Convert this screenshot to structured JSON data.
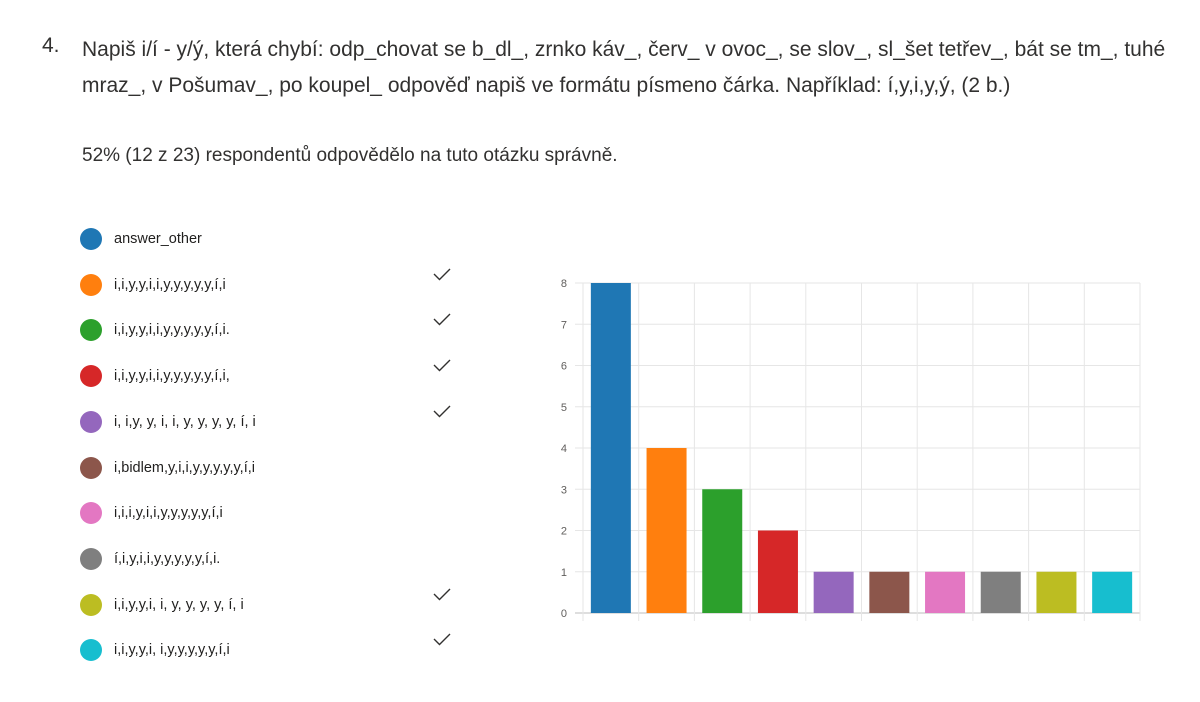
{
  "question": {
    "number": "4.",
    "text": "Napiš i/í - y/ý, která chybí: odp_chovat se b_dl_, zrnko káv_, červ_ v ovoc_, se slov_, sl_šet tetřev_, bát se tm_, tuhé mraz_, v Pošumav_, po koupel_ odpověď napiš ve formátu písmeno čárka. Například: í,y,i,y,ý, (2 b.)",
    "stat": "52% (12 z 23) respondentů odpovědělo na tuto otázku správně."
  },
  "legend": [
    {
      "label": "answer_other",
      "color": "#1f77b4",
      "correct": false,
      "check_icon": "checkmark-icon"
    },
    {
      "label": "i,i,y,y,i,i,y,y,y,y,y,í,i",
      "color": "#ff7f0e",
      "correct": true,
      "check_icon": "checkmark-icon"
    },
    {
      "label": "i,i,y,y,i,i,y,y,y,y,y,í,i.",
      "color": "#2ca02c",
      "correct": true,
      "check_icon": "checkmark-icon"
    },
    {
      "label": "i,i,y,y,i,i,y,y,y,y,y,í,i,",
      "color": "#d62728",
      "correct": true,
      "check_icon": "checkmark-icon"
    },
    {
      "label": "i, i,y, y, i, i, y, y, y, y, í, i",
      "color": "#9467bd",
      "correct": true,
      "check_icon": "checkmark-icon"
    },
    {
      "label": "i,bidlem,y,i,i,y,y,y,y,y,í,i",
      "color": "#8c564b",
      "correct": false,
      "check_icon": "checkmark-icon"
    },
    {
      "label": "i,i,i,y,i,i,y,y,y,y,y,í,i",
      "color": "#e377c2",
      "correct": false,
      "check_icon": "checkmark-icon"
    },
    {
      "label": "í,i,y,i,i,y,y,y,y,y,í,i.",
      "color": "#7f7f7f",
      "correct": false,
      "check_icon": "checkmark-icon"
    },
    {
      "label": "i,i,y,y,i, i, y, y, y, y, í, i",
      "color": "#bcbd22",
      "correct": true,
      "check_icon": "checkmark-icon"
    },
    {
      "label": "i,i,y,y,i, i,y,y,y,y,y,í,i",
      "color": "#17becf",
      "correct": true,
      "check_icon": "checkmark-icon"
    }
  ],
  "chart_data": {
    "type": "bar",
    "categories": [
      "answer_other",
      "i,i,y,y,i,i,y,y,y,y,y,í,i",
      "i,i,y,y,i,i,y,y,y,y,y,í,i.",
      "i,i,y,y,i,i,y,y,y,y,y,í,i,",
      "i, i,y, y, i, i, y, y, y, y, í, i",
      "i,bidlem,y,i,i,y,y,y,y,y,í,i",
      "i,i,i,y,i,i,y,y,y,y,y,í,i",
      "í,i,y,i,i,y,y,y,y,y,í,i.",
      "i,i,y,y,i, i, y, y, y, y, í, i",
      "i,i,y,y,i, i,y,y,y,y,y,í,i"
    ],
    "values": [
      8,
      4,
      3,
      2,
      1,
      1,
      1,
      1,
      1,
      1
    ],
    "colors": [
      "#1f77b4",
      "#ff7f0e",
      "#2ca02c",
      "#d62728",
      "#9467bd",
      "#8c564b",
      "#e377c2",
      "#7f7f7f",
      "#bcbd22",
      "#17becf"
    ],
    "title": "",
    "xlabel": "",
    "ylabel": "",
    "ylim": [
      0,
      8
    ],
    "yticks": [
      "0",
      "1",
      "2",
      "3",
      "4",
      "5",
      "6",
      "7",
      "8"
    ],
    "grid": true,
    "legend_position": "left"
  }
}
